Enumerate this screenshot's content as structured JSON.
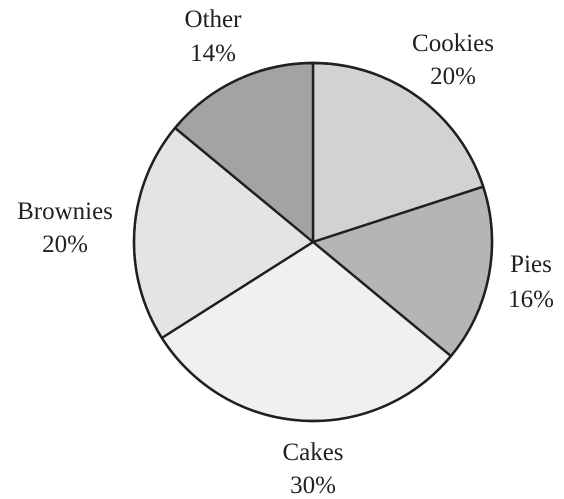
{
  "chart_data": {
    "type": "pie",
    "title": "",
    "categories": [
      "Cookies",
      "Pies",
      "Cakes",
      "Brownies",
      "Other"
    ],
    "values": [
      20,
      16,
      30,
      20,
      14
    ],
    "unit": "%",
    "value_labels": [
      "20%",
      "16%",
      "30%",
      "20%",
      "14%"
    ],
    "start_angle_deg": 0,
    "direction": "clockwise",
    "colors": [
      "#d2d2d2",
      "#b5b5b5",
      "#f0f0f0",
      "#e4e4e4",
      "#a3a3a3"
    ],
    "outline_color": "#231f20",
    "legend": "none"
  }
}
